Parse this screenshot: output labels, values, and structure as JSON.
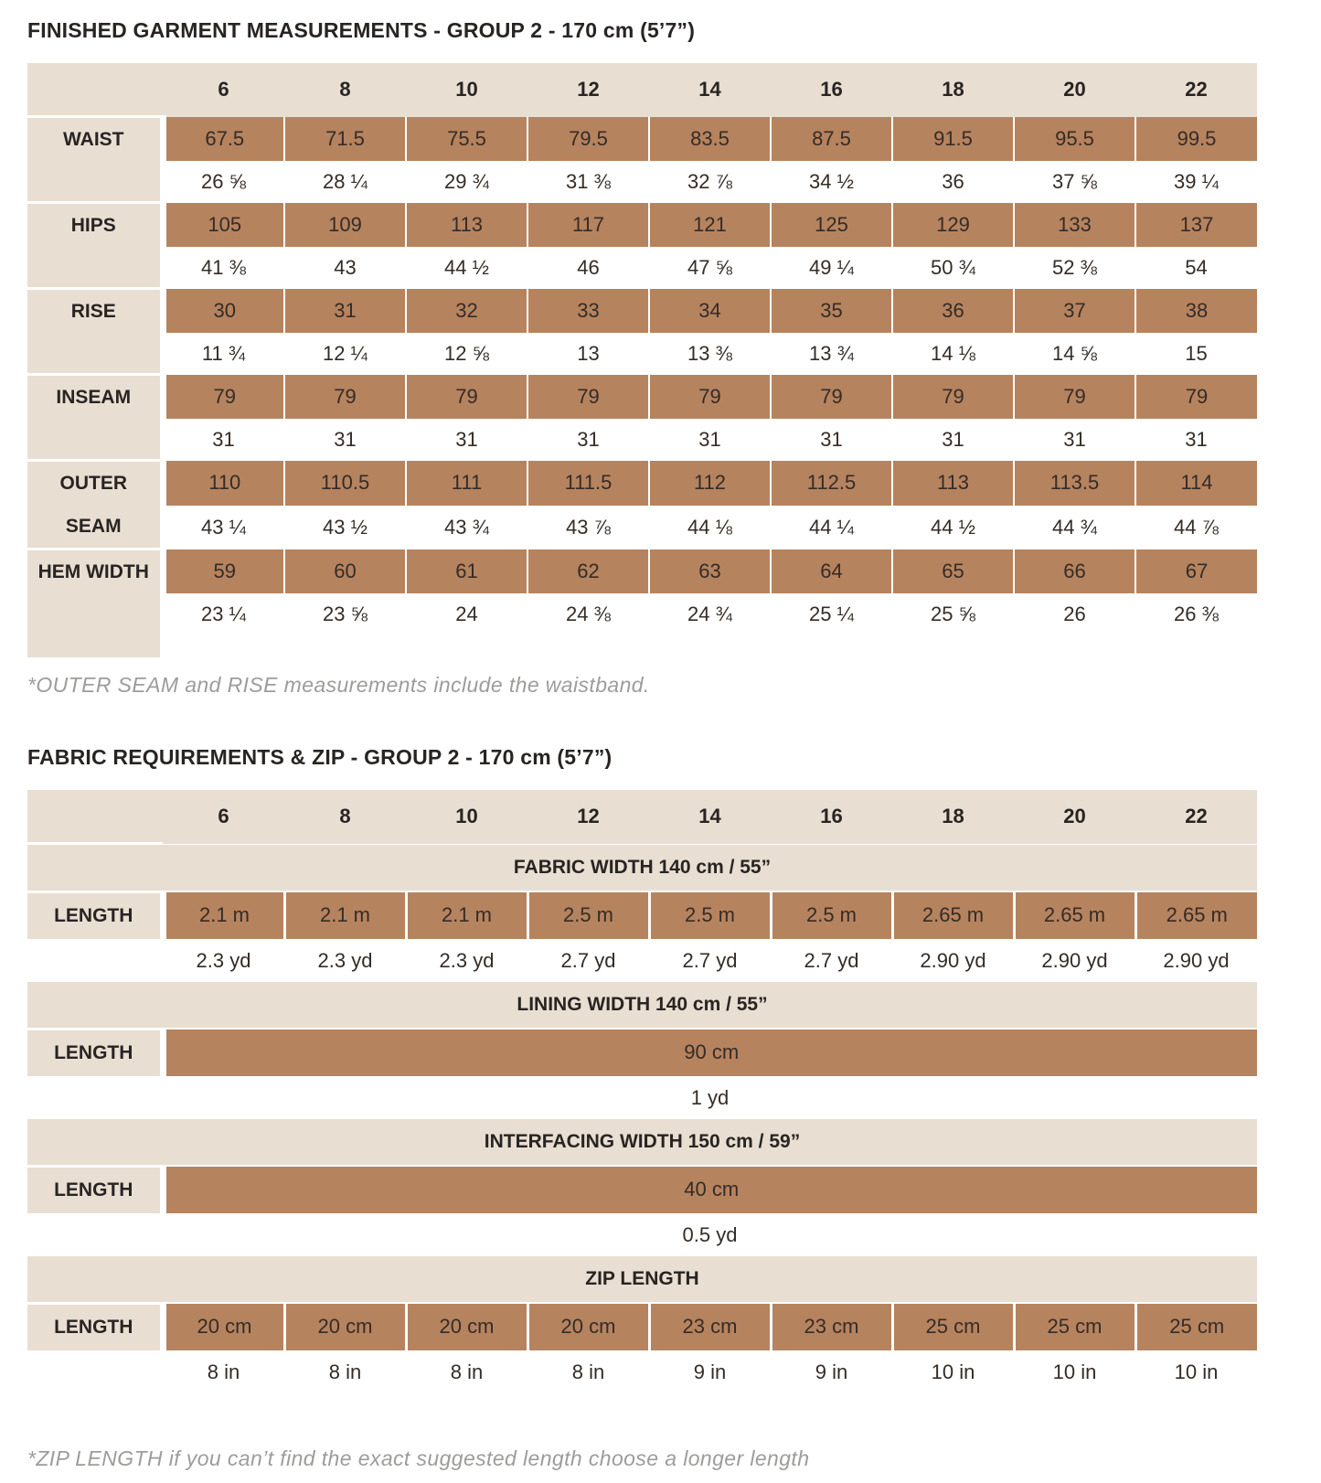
{
  "section1": {
    "title": "FINISHED GARMENT MEASUREMENTS - GROUP 2 - 170 cm (5’7”)",
    "footnote": "*OUTER SEAM and RISE measurements include the waistband.",
    "table": {
      "sizes": [
        "6",
        "8",
        "10",
        "12",
        "14",
        "16",
        "18",
        "20",
        "22"
      ],
      "rows": [
        {
          "label": "WAIST",
          "cm": [
            "67.5",
            "71.5",
            "75.5",
            "79.5",
            "83.5",
            "87.5",
            "91.5",
            "95.5",
            "99.5"
          ],
          "inches": [
            "26 ⅝",
            "28 ¼",
            "29 ¾",
            "31 ⅜",
            "32 ⅞",
            "34 ½",
            "36",
            "37 ⅝",
            "39 ¼"
          ]
        },
        {
          "label": "HIPS",
          "cm": [
            "105",
            "109",
            "113",
            "117",
            "121",
            "125",
            "129",
            "133",
            "137"
          ],
          "inches": [
            "41 ⅜",
            "43",
            "44 ½",
            "46",
            "47 ⅝",
            "49 ¼",
            "50 ¾",
            "52 ⅜",
            "54"
          ]
        },
        {
          "label": "RISE",
          "cm": [
            "30",
            "31",
            "32",
            "33",
            "34",
            "35",
            "36",
            "37",
            "38"
          ],
          "inches": [
            "11 ¾",
            "12 ¼",
            "12 ⅝",
            "13",
            "13 ⅜",
            "13 ¾",
            "14 ⅛",
            "14 ⅝",
            "15"
          ]
        },
        {
          "label": "INSEAM",
          "cm": [
            "79",
            "79",
            "79",
            "79",
            "79",
            "79",
            "79",
            "79",
            "79"
          ],
          "inches": [
            "31",
            "31",
            "31",
            "31",
            "31",
            "31",
            "31",
            "31",
            "31"
          ]
        },
        {
          "label": "OUTER SEAM",
          "cm": [
            "110",
            "110.5",
            "111",
            "111.5",
            "112",
            "112.5",
            "113",
            "113.5",
            "114"
          ],
          "inches": [
            "43 ¼",
            "43 ½",
            "43 ¾",
            "43 ⅞",
            "44 ⅛",
            "44 ¼",
            "44 ½",
            "44 ¾",
            "44 ⅞"
          ]
        },
        {
          "label": "HEM WIDTH",
          "cm": [
            "59",
            "60",
            "61",
            "62",
            "63",
            "64",
            "65",
            "66",
            "67"
          ],
          "inches": [
            "23 ¼",
            "23 ⅝",
            "24",
            "24 ⅜",
            "24 ¾",
            "25 ¼",
            "25 ⅝",
            "26",
            "26 ⅜"
          ]
        }
      ]
    }
  },
  "section2": {
    "title": "FABRIC REQUIREMENTS & ZIP - GROUP 2 - 170 cm (5’7”)",
    "footnote": "*ZIP LENGTH if you can’t find the exact suggested length choose a longer length",
    "table": {
      "sizes": [
        "6",
        "8",
        "10",
        "12",
        "14",
        "16",
        "18",
        "20",
        "22"
      ],
      "sections": [
        {
          "banner": "FABRIC WIDTH 140 cm / 55”",
          "label": "LENGTH",
          "merged": false,
          "primary": [
            "2.1 m",
            "2.1 m",
            "2.1 m",
            "2.5 m",
            "2.5 m",
            "2.5 m",
            "2.65 m",
            "2.65 m",
            "2.65 m"
          ],
          "secondary": [
            "2.3 yd",
            "2.3 yd",
            "2.3 yd",
            "2.7 yd",
            "2.7 yd",
            "2.7 yd",
            "2.90 yd",
            "2.90 yd",
            "2.90 yd"
          ]
        },
        {
          "banner": "LINING WIDTH 140 cm / 55”",
          "label": "LENGTH",
          "merged": true,
          "primary": "90 cm",
          "secondary": "1 yd"
        },
        {
          "banner": "INTERFACING WIDTH 150 cm / 59”",
          "label": "LENGTH",
          "merged": true,
          "primary": "40 cm",
          "secondary": "0.5 yd"
        },
        {
          "banner": "ZIP LENGTH",
          "label": "LENGTH",
          "merged": false,
          "primary": [
            "20 cm",
            "20 cm",
            "20 cm",
            "20 cm",
            "23 cm",
            "23 cm",
            "25 cm",
            "25 cm",
            "25 cm"
          ],
          "secondary": [
            "8 in",
            "8 in",
            "8 in",
            "8 in",
            "9 in",
            "9 in",
            "10 in",
            "10 in",
            "10 in"
          ]
        }
      ]
    }
  },
  "colors": {
    "beige": "#e8ded2",
    "brown": "#b6835f",
    "text": "#342c26",
    "footnote_gray": "#9e9c9a"
  }
}
